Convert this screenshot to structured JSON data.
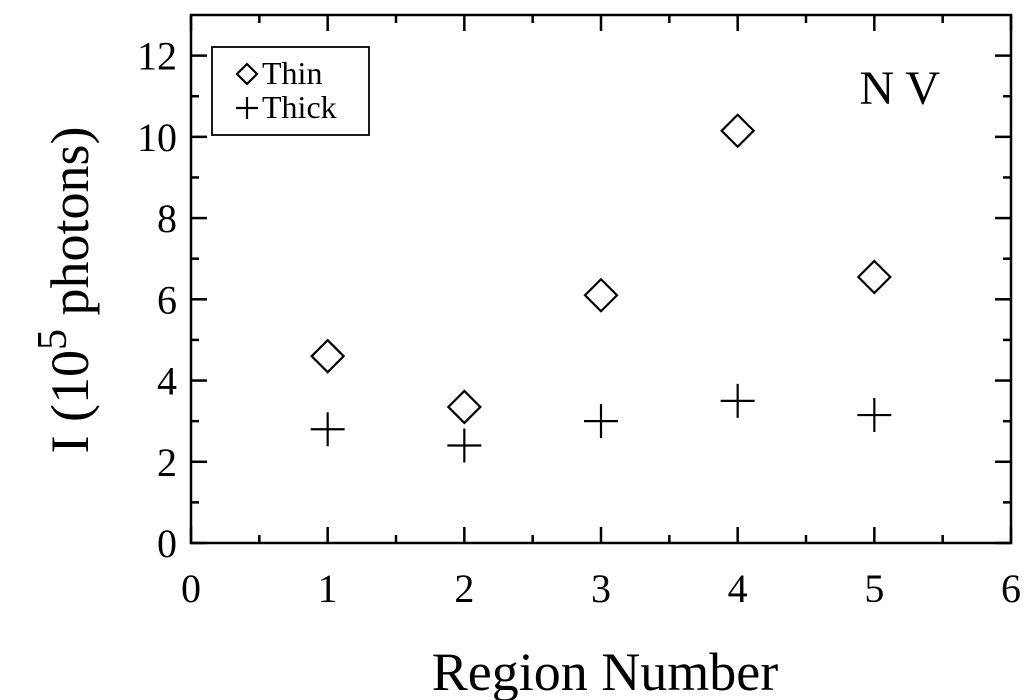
{
  "chart_data": {
    "type": "scatter",
    "xlabel": "Region Number",
    "ylabel_main": "I (10",
    "ylabel_sup": "5",
    "ylabel_rest": " photons)",
    "xlim": [
      0,
      6
    ],
    "ylim": [
      0,
      13
    ],
    "xticks": [
      0,
      1,
      2,
      3,
      4,
      5,
      6
    ],
    "yticks": [
      0,
      2,
      4,
      6,
      8,
      10,
      12
    ],
    "annotation": "N V",
    "legend_position": "top-left",
    "series": [
      {
        "name": "Thin",
        "marker": "diamond",
        "x": [
          1,
          2,
          3,
          4,
          5
        ],
        "y": [
          4.6,
          3.35,
          6.1,
          10.15,
          6.55
        ]
      },
      {
        "name": "Thick",
        "marker": "plus",
        "x": [
          1,
          2,
          3,
          4,
          5
        ],
        "y": [
          2.8,
          2.4,
          3.0,
          3.5,
          3.15
        ]
      }
    ]
  }
}
